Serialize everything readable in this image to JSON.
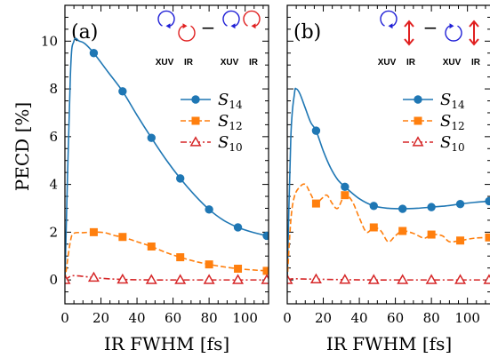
{
  "figure": {
    "ylabel": "PECD [%]"
  },
  "chart_data": [
    {
      "type": "line",
      "panel_label": "(a)",
      "xlabel": "IR FWHM [fs]",
      "xlim": [
        0,
        113
      ],
      "ylim": [
        -1,
        11.5
      ],
      "xticks": [
        0,
        20,
        40,
        60,
        80,
        100
      ],
      "yticks": [
        0,
        2,
        4,
        6,
        8,
        10
      ],
      "legend_position": "right",
      "inset": {
        "left_labels": [
          "XUV",
          "IR"
        ],
        "right_labels": [
          "XUV",
          "IR"
        ],
        "operator": "−",
        "left_pair": [
          {
            "name": "xuv-ccw-circle",
            "color": "#1f1fd6"
          },
          {
            "name": "ir-cw-circle",
            "color": "#e02020"
          }
        ],
        "right_pair": [
          {
            "name": "xuv-ccw-circle",
            "color": "#1f1fd6"
          },
          {
            "name": "ir-ccw-circle",
            "color": "#e02020"
          }
        ]
      },
      "series": [
        {
          "name": "S14",
          "legend_main": "S",
          "legend_sub": "14",
          "color": "#1f77b4",
          "marker": "circle",
          "dash": "",
          "curve": [
            [
              0,
              0
            ],
            [
              3,
              8.5
            ],
            [
              5,
              10
            ],
            [
              8,
              10
            ],
            [
              11,
              9.9
            ],
            [
              16,
              9.5
            ],
            [
              24,
              8.7
            ],
            [
              32,
              7.9
            ],
            [
              40,
              6.9
            ],
            [
              48,
              5.95
            ],
            [
              56,
              5.05
            ],
            [
              64,
              4.25
            ],
            [
              72,
              3.55
            ],
            [
              80,
              2.95
            ],
            [
              88,
              2.5
            ],
            [
              96,
              2.2
            ],
            [
              104,
              2.0
            ],
            [
              112,
              1.85
            ]
          ],
          "markers": [
            [
              16,
              9.5
            ],
            [
              32,
              7.9
            ],
            [
              48,
              5.95
            ],
            [
              64,
              4.25
            ],
            [
              80,
              2.95
            ],
            [
              96,
              2.2
            ],
            [
              112,
              1.85
            ]
          ]
        },
        {
          "name": "S12",
          "legend_main": "S",
          "legend_sub": "12",
          "color": "#ff7f0e",
          "marker": "square",
          "dash": "6,3",
          "curve": [
            [
              0,
              0
            ],
            [
              3,
              1.6
            ],
            [
              5,
              1.95
            ],
            [
              10,
              1.98
            ],
            [
              16,
              2.0
            ],
            [
              22,
              1.98
            ],
            [
              28,
              1.85
            ],
            [
              32,
              1.8
            ],
            [
              40,
              1.6
            ],
            [
              48,
              1.4
            ],
            [
              56,
              1.15
            ],
            [
              64,
              0.95
            ],
            [
              72,
              0.78
            ],
            [
              80,
              0.65
            ],
            [
              88,
              0.55
            ],
            [
              96,
              0.47
            ],
            [
              104,
              0.42
            ],
            [
              112,
              0.38
            ]
          ],
          "markers": [
            [
              16,
              2.0
            ],
            [
              32,
              1.8
            ],
            [
              48,
              1.4
            ],
            [
              64,
              0.95
            ],
            [
              80,
              0.65
            ],
            [
              96,
              0.47
            ],
            [
              112,
              0.38
            ]
          ]
        },
        {
          "name": "S10",
          "legend_main": "S",
          "legend_sub": "10",
          "color": "#d62728",
          "marker": "triangle-open",
          "dash": "7,3,2,3",
          "curve": [
            [
              0,
              0
            ],
            [
              3,
              0.15
            ],
            [
              5,
              0.18
            ],
            [
              10,
              0.15
            ],
            [
              16,
              0.1
            ],
            [
              24,
              0.05
            ],
            [
              32,
              0.02
            ],
            [
              48,
              0.0
            ],
            [
              64,
              0.0
            ],
            [
              80,
              0.0
            ],
            [
              96,
              0.0
            ],
            [
              112,
              0.0
            ]
          ],
          "markers": [
            [
              0,
              0
            ],
            [
              16,
              0.1
            ],
            [
              32,
              0.02
            ],
            [
              48,
              0
            ],
            [
              64,
              0
            ],
            [
              80,
              0
            ],
            [
              96,
              0
            ],
            [
              112,
              0
            ]
          ]
        }
      ]
    },
    {
      "type": "line",
      "panel_label": "(b)",
      "xlabel": "IR FWHM [fs]",
      "xlim": [
        0,
        113
      ],
      "ylim": [
        -1,
        11.5
      ],
      "xticks": [
        0,
        20,
        40,
        60,
        80,
        100
      ],
      "yticks": [
        0,
        2,
        4,
        6,
        8,
        10
      ],
      "legend_position": "right",
      "inset": {
        "left_labels": [
          "XUV",
          "IR"
        ],
        "right_labels": [
          "XUV",
          "IR"
        ],
        "operator": "−",
        "left_pair": [
          {
            "name": "xuv-ccw-circle",
            "color": "#1f1fd6"
          },
          {
            "name": "ir-linear-arrow",
            "color": "#e02020"
          }
        ],
        "right_pair": [
          {
            "name": "xuv-cw-circle",
            "color": "#1f1fd6"
          },
          {
            "name": "ir-linear-arrow",
            "color": "#e02020"
          }
        ]
      },
      "series": [
        {
          "name": "S14",
          "legend_main": "S",
          "legend_sub": "14",
          "color": "#1f77b4",
          "marker": "circle",
          "dash": "",
          "curve": [
            [
              0,
              0
            ],
            [
              2,
              6.0
            ],
            [
              4,
              7.8
            ],
            [
              5,
              8.0
            ],
            [
              7,
              7.8
            ],
            [
              10,
              7.2
            ],
            [
              13,
              6.6
            ],
            [
              16,
              6.25
            ],
            [
              20,
              5.4
            ],
            [
              24,
              4.7
            ],
            [
              28,
              4.2
            ],
            [
              32,
              3.9
            ],
            [
              40,
              3.4
            ],
            [
              48,
              3.1
            ],
            [
              56,
              3.0
            ],
            [
              64,
              2.98
            ],
            [
              72,
              3.0
            ],
            [
              80,
              3.05
            ],
            [
              88,
              3.1
            ],
            [
              96,
              3.18
            ],
            [
              104,
              3.25
            ],
            [
              112,
              3.3
            ]
          ],
          "markers": [
            [
              16,
              6.25
            ],
            [
              32,
              3.9
            ],
            [
              48,
              3.1
            ],
            [
              64,
              2.98
            ],
            [
              80,
              3.05
            ],
            [
              96,
              3.18
            ],
            [
              112,
              3.3
            ]
          ]
        },
        {
          "name": "S12",
          "legend_main": "S",
          "legend_sub": "12",
          "color": "#ff7f0e",
          "marker": "square",
          "dash": "6,3",
          "curve": [
            [
              0,
              0
            ],
            [
              2,
              2.5
            ],
            [
              4,
              3.5
            ],
            [
              7,
              3.9
            ],
            [
              10,
              4.0
            ],
            [
              13,
              3.6
            ],
            [
              16,
              3.2
            ],
            [
              19,
              3.4
            ],
            [
              22,
              3.55
            ],
            [
              25,
              3.2
            ],
            [
              28,
              3.0
            ],
            [
              32,
              3.55
            ],
            [
              36,
              3.3
            ],
            [
              40,
              2.6
            ],
            [
              44,
              2.0
            ],
            [
              48,
              2.2
            ],
            [
              52,
              2.05
            ],
            [
              56,
              1.6
            ],
            [
              60,
              1.85
            ],
            [
              64,
              2.05
            ],
            [
              70,
              1.95
            ],
            [
              76,
              1.75
            ],
            [
              80,
              1.9
            ],
            [
              86,
              1.85
            ],
            [
              90,
              1.6
            ],
            [
              96,
              1.65
            ],
            [
              104,
              1.75
            ],
            [
              112,
              1.78
            ]
          ],
          "markers": [
            [
              16,
              3.2
            ],
            [
              32,
              3.55
            ],
            [
              48,
              2.2
            ],
            [
              64,
              2.05
            ],
            [
              80,
              1.9
            ],
            [
              96,
              1.65
            ],
            [
              112,
              1.78
            ]
          ]
        },
        {
          "name": "S10",
          "legend_main": "S",
          "legend_sub": "10",
          "color": "#d62728",
          "marker": "triangle-open",
          "dash": "7,3,2,3",
          "curve": [
            [
              0,
              0
            ],
            [
              3,
              0.05
            ],
            [
              8,
              0.04
            ],
            [
              16,
              0.03
            ],
            [
              32,
              0.01
            ],
            [
              48,
              0.0
            ],
            [
              64,
              0.0
            ],
            [
              80,
              0.0
            ],
            [
              96,
              0.0
            ],
            [
              112,
              0.0
            ]
          ],
          "markers": [
            [
              0,
              0
            ],
            [
              16,
              0.03
            ],
            [
              32,
              0.01
            ],
            [
              48,
              0
            ],
            [
              64,
              0
            ],
            [
              80,
              0
            ],
            [
              96,
              0
            ],
            [
              112,
              0
            ]
          ]
        }
      ]
    }
  ]
}
